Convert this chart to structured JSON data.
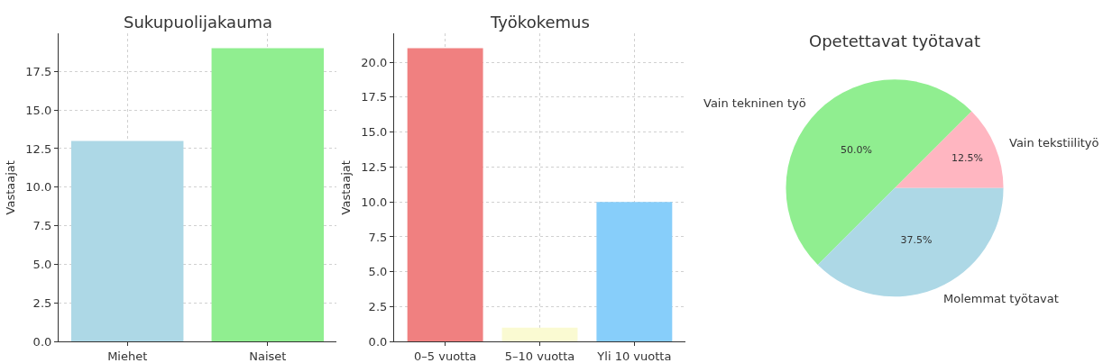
{
  "chart_data": [
    {
      "type": "bar",
      "title": "Sukupuolijakauma",
      "ylabel": "Vastaajat",
      "categories": [
        "Miehet",
        "Naiset"
      ],
      "values": [
        13,
        19
      ],
      "colors": [
        "#add8e6",
        "#90ee90"
      ],
      "ylim": [
        0,
        19.95
      ],
      "yticks": [
        {
          "value": 0,
          "label": "0.0"
        },
        2.5,
        {
          "value": 5,
          "label": "5.0"
        },
        7.5,
        {
          "value": 10,
          "label": "10.0"
        },
        12.5,
        {
          "value": 15,
          "label": "15.0"
        },
        17.5
      ],
      "grid": true
    },
    {
      "type": "bar",
      "title": "Työkokemus",
      "ylabel": "Vastaajat",
      "categories": [
        "0–5 vuotta",
        "5–10 vuotta",
        "Yli 10 vuotta"
      ],
      "values": [
        21,
        1,
        10
      ],
      "colors": [
        "#f08080",
        "#fafad2",
        "#87cefa"
      ],
      "ylim": [
        0,
        22.05
      ],
      "yticks": [
        {
          "value": 0,
          "label": "0.0"
        },
        2.5,
        {
          "value": 5,
          "label": "5.0"
        },
        7.5,
        {
          "value": 10,
          "label": "10.0"
        },
        12.5,
        {
          "value": 15,
          "label": "15.0"
        },
        17.5,
        {
          "value": 20,
          "label": "20.0"
        }
      ],
      "grid": true
    },
    {
      "type": "pie",
      "title": "Opetettavat työtavat",
      "categories": [
        "Vain tekstiilityö",
        "Vain tekninen työ",
        "Molemmat työtavat"
      ],
      "values": [
        12.5,
        50,
        37.5
      ],
      "colors": [
        "#ffb6c1",
        "#90ee90",
        "#add8e6"
      ],
      "value_labels": [
        "12.5%",
        "50.0%",
        "37.5%"
      ]
    }
  ]
}
